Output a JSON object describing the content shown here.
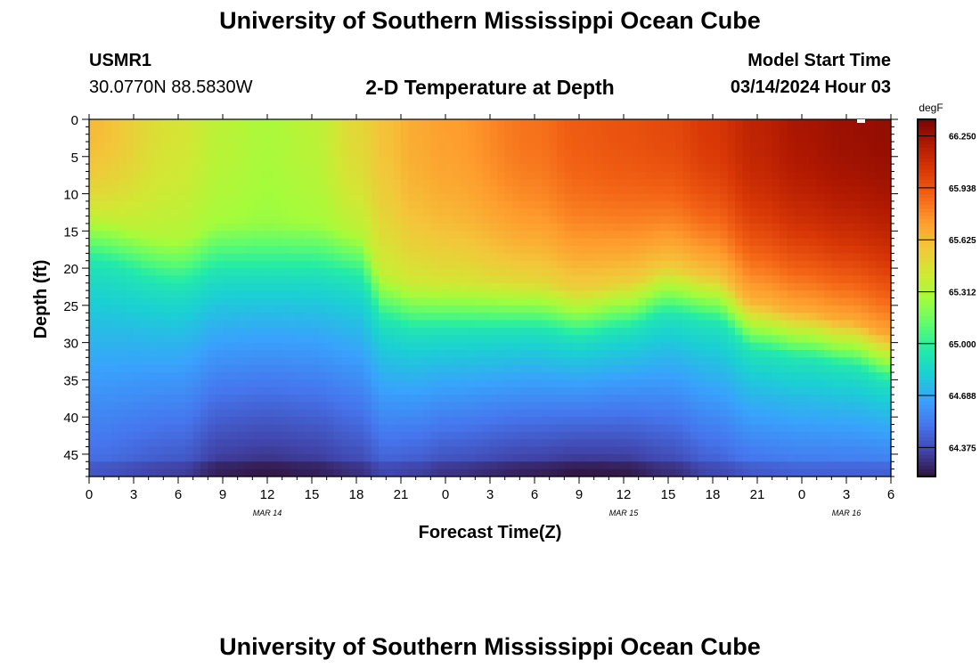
{
  "header": {
    "title": "University of Southern Mississippi Ocean Cube",
    "station_id": "USMR1",
    "coordinates": "30.0770N  88.5830W",
    "subtitle": "2-D Temperature at Depth",
    "model_start_label": "Model Start Time",
    "model_start_value": "03/14/2024 Hour 03"
  },
  "footer": {
    "title": "University of Southern Mississippi Ocean Cube"
  },
  "chart_data": {
    "type": "heatmap",
    "title": "2-D Temperature at Depth",
    "xlabel": "Forecast Time(Z)",
    "ylabel": "Depth (ft)",
    "x_tick_labels": [
      "0",
      "3",
      "6",
      "9",
      "12",
      "15",
      "18",
      "21",
      "0",
      "3",
      "6",
      "9",
      "12",
      "15",
      "18",
      "21",
      "0",
      "3",
      "6"
    ],
    "x_range_hours": [
      0,
      54
    ],
    "date_labels": [
      {
        "label": "MAR 14",
        "hour": 12
      },
      {
        "label": "MAR 15",
        "hour": 36
      },
      {
        "label": "MAR 16",
        "hour": 51
      }
    ],
    "y_ticks": [
      0,
      5,
      10,
      15,
      20,
      25,
      30,
      35,
      40,
      45
    ],
    "ylim": [
      0,
      48
    ],
    "y_inverted": true,
    "colorbar": {
      "unit": "degF",
      "min": 64.2,
      "max": 66.35,
      "tick_values": [
        64.375,
        64.688,
        65.0,
        65.312,
        65.625,
        65.938,
        66.25
      ],
      "tick_labels": [
        "64.375",
        "64.688",
        "65.000",
        "65.312",
        "65.625",
        "65.938",
        "66.250"
      ],
      "colors": [
        "#30123b",
        "#4145ab",
        "#4675ed",
        "#39a2fc",
        "#1bcfd4",
        "#24eca6",
        "#61fc6c",
        "#a4fc3b",
        "#d1e834",
        "#f3c63a",
        "#fe9b2d",
        "#f36315",
        "#d93806",
        "#b11901",
        "#7a0403"
      ]
    },
    "series_description": "Temperature (degF) by forecast hour (x) and depth in ft (y)",
    "profile_hours": [
      0,
      6,
      9,
      12,
      15,
      18,
      20,
      22,
      24,
      30,
      33,
      36,
      39,
      42,
      45,
      48,
      51,
      54
    ],
    "thermocline_depth_ft": [
      15,
      18,
      16,
      16,
      16,
      17,
      23,
      24,
      24,
      24,
      25,
      24,
      22,
      23,
      27,
      28,
      29,
      31
    ],
    "surface_temp_degF": [
      65.62,
      65.45,
      65.35,
      65.3,
      65.35,
      65.5,
      65.6,
      65.68,
      65.72,
      65.85,
      65.92,
      65.95,
      65.98,
      66.05,
      66.15,
      66.22,
      66.26,
      66.28
    ],
    "bottom_temp_degF": [
      64.45,
      64.38,
      64.28,
      64.26,
      64.28,
      64.33,
      64.4,
      64.38,
      64.34,
      64.28,
      64.25,
      64.26,
      64.32,
      64.4,
      64.46,
      64.48,
      64.48,
      64.48
    ]
  }
}
